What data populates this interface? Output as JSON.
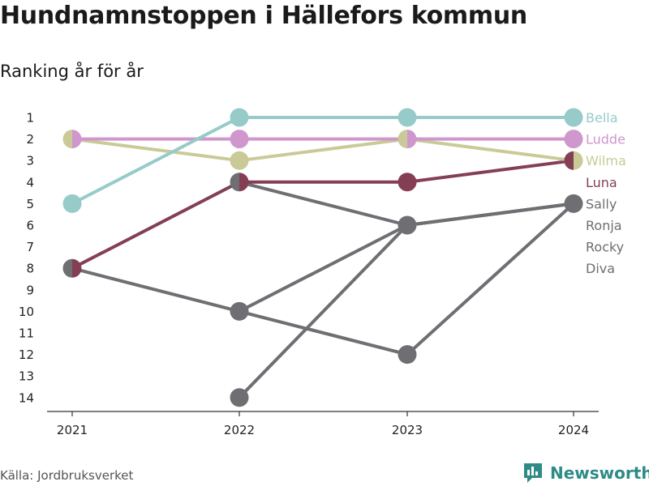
{
  "title": "Hundnamnstoppen i Hällefors kommun",
  "subtitle": "Ranking år för år",
  "source": "Källa: Jordbruksverket",
  "brand": "Newsworthy",
  "chart_data": {
    "type": "line",
    "chart_style": "bump",
    "x": [
      "2021",
      "2022",
      "2023",
      "2024"
    ],
    "y_ticks": [
      1,
      2,
      3,
      4,
      5,
      6,
      7,
      8,
      9,
      10,
      11,
      12,
      13,
      14
    ],
    "ylim": [
      14,
      1
    ],
    "y_reversed": true,
    "grid": false,
    "series": [
      {
        "name": "Diva",
        "color": "#6e6e73",
        "values": [
          null,
          14,
          6,
          5
        ]
      },
      {
        "name": "Rocky",
        "color": "#6e6e73",
        "values": [
          8,
          10,
          12,
          5
        ]
      },
      {
        "name": "Ronja",
        "color": "#6e6e73",
        "values": [
          null,
          10,
          6,
          5
        ]
      },
      {
        "name": "Sally",
        "color": "#6e6e73",
        "values": [
          null,
          4,
          6,
          5
        ]
      },
      {
        "name": "Luna",
        "color": "#843f55",
        "values": [
          8,
          4,
          4,
          3
        ]
      },
      {
        "name": "Wilma",
        "color": "#c9ca98",
        "values": [
          2,
          3,
          2,
          3
        ]
      },
      {
        "name": "Ludde",
        "color": "#cf97cc",
        "values": [
          2,
          2,
          2,
          2
        ]
      },
      {
        "name": "Bella",
        "color": "#96cbca",
        "values": [
          5,
          1,
          1,
          1
        ]
      }
    ],
    "end_labels": [
      {
        "name": "Bella",
        "color": "#96cbca"
      },
      {
        "name": "Ludde",
        "color": "#cf97cc"
      },
      {
        "name": "Wilma",
        "color": "#c9ca98"
      },
      {
        "name": "Luna",
        "color": "#843f55"
      },
      {
        "name": "Sally",
        "color": "#6e6e73"
      },
      {
        "name": "Ronja",
        "color": "#6e6e73"
      },
      {
        "name": "Rocky",
        "color": "#6e6e73"
      },
      {
        "name": "Diva",
        "color": "#6e6e73"
      }
    ]
  }
}
